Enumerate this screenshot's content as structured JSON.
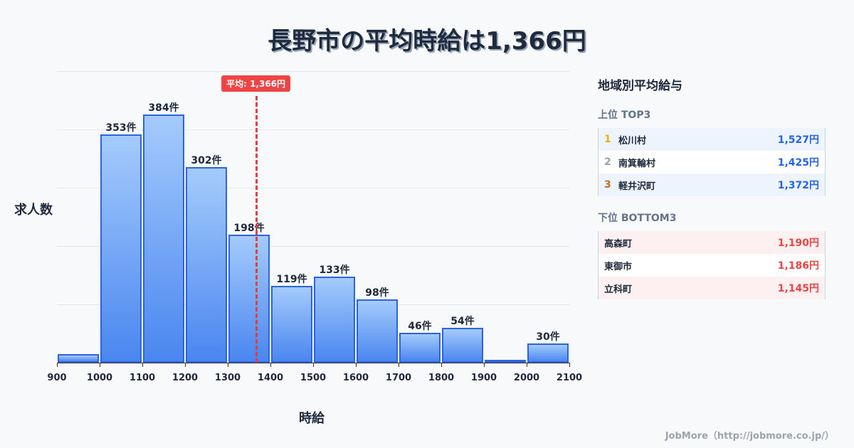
{
  "title": "長野市の平均時給は1,366円",
  "chart_data": {
    "type": "bar",
    "title": "長野市の平均時給は1,366円",
    "xlabel": "時給",
    "ylabel": "求人数",
    "categories": [
      "900-1000",
      "1000-1100",
      "1100-1200",
      "1200-1300",
      "1300-1400",
      "1400-1500",
      "1500-1600",
      "1600-1700",
      "1700-1800",
      "1800-1900",
      "1900-2000",
      "2000-2100"
    ],
    "bins": [
      900,
      1000,
      1100,
      1200,
      1300,
      1400,
      1500,
      1600,
      1700,
      1800,
      1900,
      2000,
      2100
    ],
    "values": [
      13,
      353,
      384,
      302,
      198,
      119,
      133,
      98,
      46,
      54,
      4,
      30
    ],
    "labels": [
      "",
      "353件",
      "384件",
      "302件",
      "198件",
      "119件",
      "133件",
      "98件",
      "46件",
      "54件",
      "",
      "30件"
    ],
    "xticks": [
      "900",
      "1000",
      "1100",
      "1200",
      "1300",
      "1400",
      "1500",
      "1600",
      "1700",
      "1800",
      "1900",
      "2000",
      "2100"
    ],
    "xlim": [
      900,
      2100
    ],
    "ylim": [
      0,
      451
    ],
    "grid": true,
    "mean": {
      "value": 1366,
      "label": "平均: 1,366円"
    },
    "colors": {
      "bar_top": "#a4cbfb",
      "bar_bottom": "#4a86f0",
      "bar_border": "#2b63e0",
      "mean_line": "#e53e3e"
    }
  },
  "panel": {
    "title": "地域別平均給与",
    "top_title": "上位 TOP3",
    "top": [
      {
        "rank": "1",
        "name": "松川村",
        "value": "1,527円",
        "rank_color": "#eab308"
      },
      {
        "rank": "2",
        "name": "南箕輪村",
        "value": "1,425円",
        "rank_color": "#9ca3af"
      },
      {
        "rank": "3",
        "name": "軽井沢町",
        "value": "1,372円",
        "rank_color": "#c2702b"
      }
    ],
    "bottom_title": "下位 BOTTOM3",
    "bottom": [
      {
        "name": "高森町",
        "value": "1,190円"
      },
      {
        "name": "東御市",
        "value": "1,186円"
      },
      {
        "name": "立科町",
        "value": "1,145円"
      }
    ]
  },
  "footer": "JobMore（http://jobmore.co.jp/）"
}
